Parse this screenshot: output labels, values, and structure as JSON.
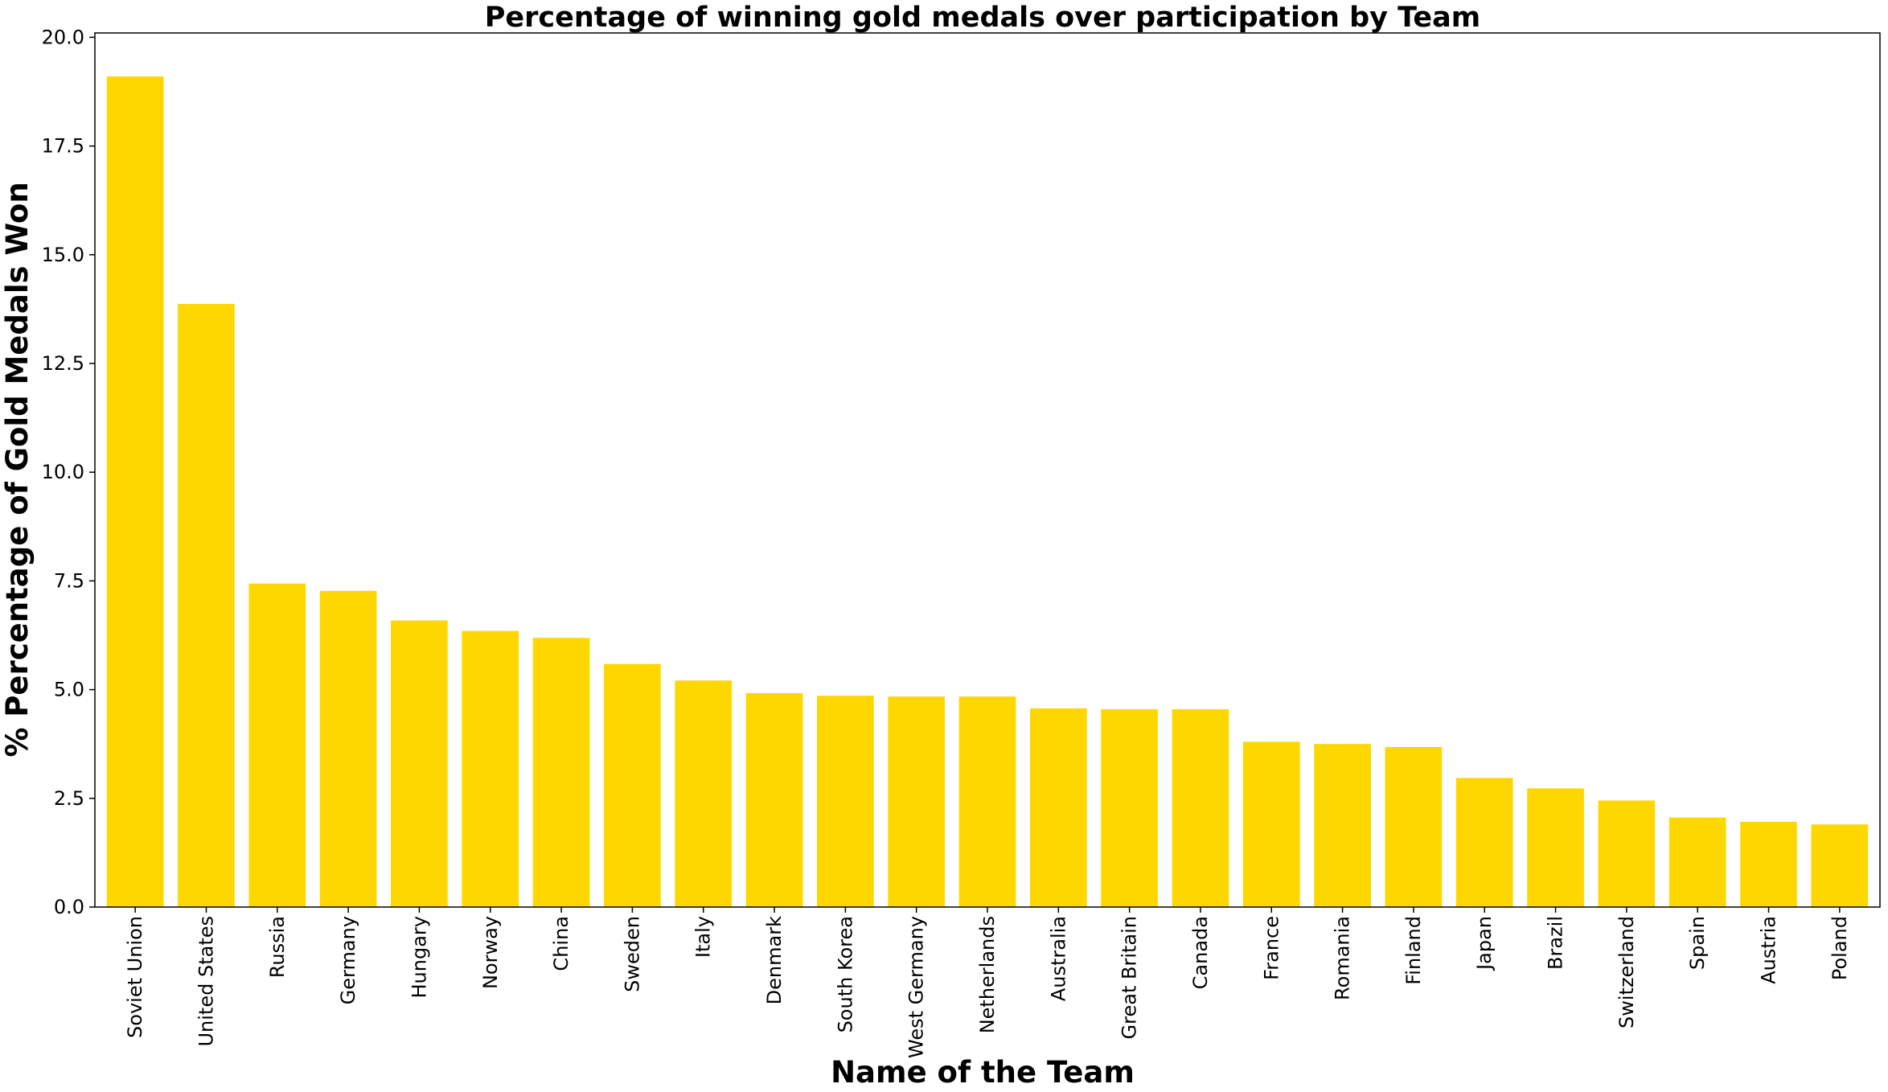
{
  "chart_data": {
    "type": "bar",
    "title": "Percentage of winning gold medals over participation by Team",
    "xlabel": "Name of the Team",
    "ylabel": "% Percentage of Gold Medals Won",
    "ylim": [
      0,
      20.1
    ],
    "yticks": [
      "0.0",
      "2.5",
      "5.0",
      "7.5",
      "10.0",
      "12.5",
      "15.0",
      "17.5",
      "20.0"
    ],
    "bar_color": "#FFD700",
    "grid": false,
    "categories": [
      "Soviet Union",
      "United States",
      "Russia",
      "Germany",
      "Hungary",
      "Norway",
      "China",
      "Sweden",
      "Italy",
      "Denmark",
      "South Korea",
      "West Germany",
      "Netherlands",
      "Australia",
      "Great Britain",
      "Canada",
      "France",
      "Romania",
      "Finland",
      "Japan",
      "Brazil",
      "Switzerland",
      "Spain",
      "Austria",
      "Poland"
    ],
    "values": [
      19.1,
      13.87,
      7.44,
      7.27,
      6.59,
      6.35,
      6.19,
      5.59,
      5.21,
      4.92,
      4.86,
      4.84,
      4.84,
      4.57,
      4.55,
      4.55,
      3.8,
      3.75,
      3.68,
      2.97,
      2.73,
      2.45,
      2.06,
      1.96,
      1.9
    ]
  }
}
